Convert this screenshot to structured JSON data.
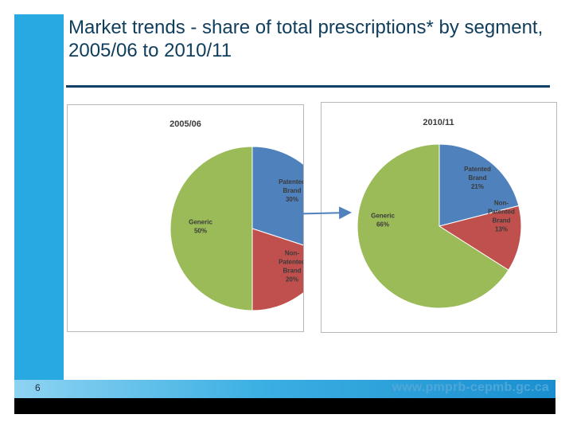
{
  "slide": {
    "title": "Market trends - share of total prescriptions* by segment, 2005/06 to 2010/11",
    "page_number": "6",
    "website": "www.pmprb-cepmb.gc.ca"
  },
  "colors": {
    "patented": "#4f81bd",
    "non_patented": "#c0504d",
    "generic": "#9bbb59"
  },
  "chart_data": [
    {
      "type": "pie",
      "title": "2005/06",
      "slices": [
        {
          "label": "Patented Brand",
          "value": 30,
          "display": "30%",
          "color": "#4f81bd"
        },
        {
          "label": "Non-Patented Brand",
          "value": 20,
          "display": "20%",
          "color": "#c0504d"
        },
        {
          "label": "Generic",
          "value": 50,
          "display": "50%",
          "color": "#9bbb59"
        }
      ]
    },
    {
      "type": "pie",
      "title": "2010/11",
      "slices": [
        {
          "label": "Patented Brand",
          "value": 21,
          "display": "21%",
          "color": "#4f81bd"
        },
        {
          "label": "Non-Patented Brand",
          "value": 13,
          "display": "13%",
          "color": "#c0504d"
        },
        {
          "label": "Generic",
          "value": 66,
          "display": "66%",
          "color": "#9bbb59"
        }
      ]
    }
  ]
}
